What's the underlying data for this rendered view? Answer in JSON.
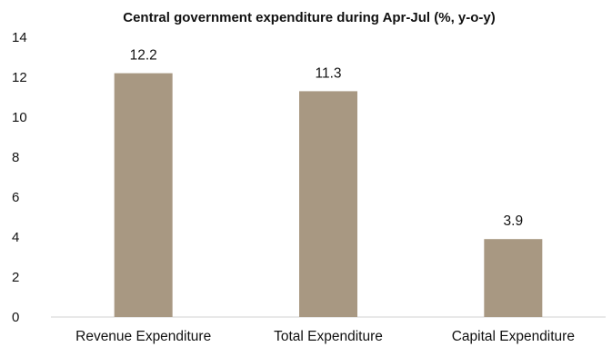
{
  "chart_data": {
    "type": "bar",
    "title": "Central government expenditure during Apr-Jul (%, y-o-y)",
    "xlabel": "",
    "ylabel": "",
    "categories": [
      "Revenue Expenditure",
      "Total Expenditure",
      "Capital Expenditure"
    ],
    "values": [
      12.2,
      11.3,
      3.9
    ],
    "data_labels": [
      "12.2",
      "11.3",
      "3.9"
    ],
    "ylim": [
      0,
      14
    ],
    "yticks": [
      0,
      2,
      4,
      6,
      8,
      10,
      12,
      14
    ],
    "grid": false,
    "legend": "none",
    "bar_color": "#a89882"
  }
}
